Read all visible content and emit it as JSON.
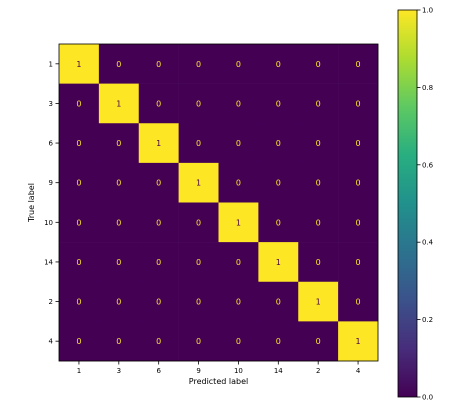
{
  "chart_data": {
    "type": "heatmap",
    "title": "",
    "xlabel": "Predicted label",
    "ylabel": "True label",
    "x_categories": [
      "1",
      "3",
      "6",
      "9",
      "10",
      "14",
      "2",
      "4"
    ],
    "y_categories": [
      "1",
      "3",
      "6",
      "9",
      "10",
      "14",
      "2",
      "4"
    ],
    "values": [
      [
        1,
        0,
        0,
        0,
        0,
        0,
        0,
        0
      ],
      [
        0,
        1,
        0,
        0,
        0,
        0,
        0,
        0
      ],
      [
        0,
        0,
        1,
        0,
        0,
        0,
        0,
        0
      ],
      [
        0,
        0,
        0,
        1,
        0,
        0,
        0,
        0
      ],
      [
        0,
        0,
        0,
        0,
        1,
        0,
        0,
        0
      ],
      [
        0,
        0,
        0,
        0,
        0,
        1,
        0,
        0
      ],
      [
        0,
        0,
        0,
        0,
        0,
        0,
        1,
        0
      ],
      [
        0,
        0,
        0,
        0,
        0,
        0,
        0,
        1
      ]
    ],
    "colorbar": {
      "colormap": "viridis",
      "range": [
        0.0,
        1.0
      ],
      "ticks": [
        0.0,
        0.2,
        0.4,
        0.6,
        0.8,
        1.0
      ],
      "tick_labels": [
        "0.0",
        "0.2",
        "0.4",
        "0.6",
        "0.8",
        "1.0"
      ]
    },
    "colors": {
      "low": "#440154",
      "high": "#fde725",
      "text_on_low": "#fde725",
      "text_on_high": "#440154"
    }
  }
}
